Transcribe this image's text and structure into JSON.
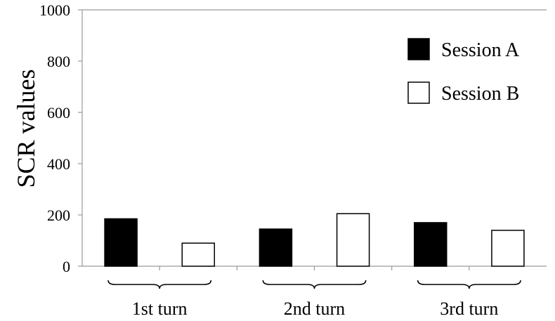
{
  "chart_data": {
    "type": "bar",
    "title": "",
    "ylabel": "SCR values",
    "xlabel": "",
    "ylim": [
      0,
      1000
    ],
    "yticks": [
      0,
      200,
      400,
      600,
      800,
      1000
    ],
    "categories": [
      "1st turn",
      "2nd turn",
      "3rd turn"
    ],
    "series": [
      {
        "name": "Session A",
        "values": [
          185,
          145,
          170
        ],
        "color": "#000000"
      },
      {
        "name": "Session B",
        "values": [
          90,
          205,
          140
        ],
        "color": "#ffffff"
      }
    ],
    "legend_position": "top-right",
    "grid": false
  }
}
